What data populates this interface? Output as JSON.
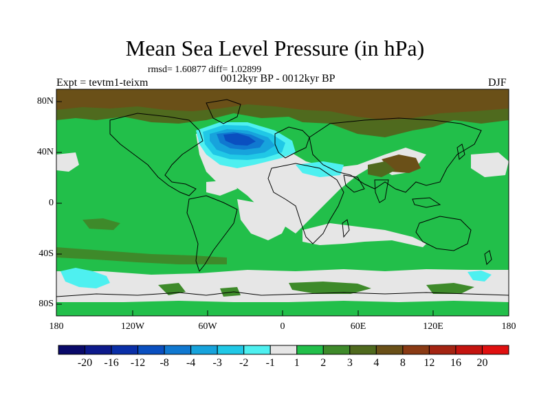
{
  "title": "Mean Sea Level Pressure (in hPa)",
  "stats": "rmsd= 1.60877 diff= 1.02899",
  "experiment": "Expt = tevtm1-teixm",
  "period": "0012kyr BP - 0012kyr BP",
  "season": "DJF",
  "lat_labels": [
    "80N",
    "40N",
    "0",
    "40S",
    "80S"
  ],
  "lon_labels": [
    "180",
    "120W",
    "60W",
    "0",
    "60E",
    "120E",
    "180"
  ],
  "colorbar": {
    "labels": [
      "-20",
      "-16",
      "-12",
      "-8",
      "-4",
      "-3",
      "-2",
      "-1",
      "1",
      "2",
      "3",
      "4",
      "8",
      "12",
      "16",
      "20"
    ],
    "colors": [
      "#0a0a6a",
      "#0d1a8c",
      "#0a2fa8",
      "#0a4fc0",
      "#1078d0",
      "#17a3dc",
      "#20c8e6",
      "#4ef0f0",
      "#e6e6e6",
      "#22bf4a",
      "#3e8a2a",
      "#4f6a1e",
      "#6a5018",
      "#8a3a14",
      "#a42412",
      "#c4140f",
      "#e01010"
    ]
  }
}
